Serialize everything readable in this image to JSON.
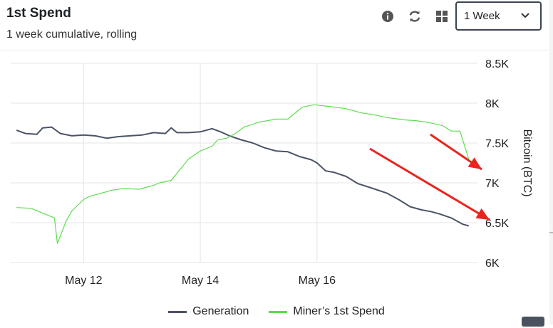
{
  "header": {
    "title": "1st Spend",
    "subtitle": "1 week cumulative, rolling",
    "period_select": "1 Week",
    "icons": [
      "info-icon",
      "refresh-icon",
      "grid-icon",
      "chevron-down-icon"
    ]
  },
  "chart_data": {
    "type": "line",
    "title": "1st Spend",
    "subtitle": "1 week cumulative, rolling",
    "xlabel": "",
    "ylabel": "Bitcoin (BTC)",
    "xlim": [
      10.75,
      18.75
    ],
    "ylim": [
      6000,
      8500
    ],
    "x_ticks": [
      {
        "x": 12,
        "label": "May 12"
      },
      {
        "x": 14,
        "label": "May 14"
      },
      {
        "x": 16,
        "label": "May 16"
      }
    ],
    "y_ticks": [
      {
        "y": 6000,
        "label": "6K"
      },
      {
        "y": 6500,
        "label": "6.5K"
      },
      {
        "y": 7000,
        "label": "7K"
      },
      {
        "y": 7500,
        "label": "7.5K"
      },
      {
        "y": 8000,
        "label": "8K"
      },
      {
        "y": 8500,
        "label": "8.5K"
      }
    ],
    "grid": true,
    "legend_position": "bottom",
    "series": [
      {
        "name": "Generation",
        "color": "#4a5366",
        "points": [
          [
            10.85,
            7660
          ],
          [
            11.0,
            7620
          ],
          [
            11.2,
            7610
          ],
          [
            11.3,
            7690
          ],
          [
            11.45,
            7700
          ],
          [
            11.6,
            7620
          ],
          [
            11.8,
            7590
          ],
          [
            12.0,
            7600
          ],
          [
            12.2,
            7590
          ],
          [
            12.4,
            7560
          ],
          [
            12.6,
            7580
          ],
          [
            12.8,
            7590
          ],
          [
            13.0,
            7600
          ],
          [
            13.2,
            7630
          ],
          [
            13.4,
            7620
          ],
          [
            13.5,
            7690
          ],
          [
            13.6,
            7630
          ],
          [
            13.8,
            7630
          ],
          [
            14.0,
            7640
          ],
          [
            14.2,
            7680
          ],
          [
            14.35,
            7640
          ],
          [
            14.5,
            7590
          ],
          [
            14.7,
            7540
          ],
          [
            14.9,
            7500
          ],
          [
            15.1,
            7440
          ],
          [
            15.3,
            7400
          ],
          [
            15.5,
            7390
          ],
          [
            15.7,
            7330
          ],
          [
            15.9,
            7290
          ],
          [
            16.0,
            7250
          ],
          [
            16.15,
            7150
          ],
          [
            16.3,
            7130
          ],
          [
            16.5,
            7080
          ],
          [
            16.7,
            6990
          ],
          [
            17.0,
            6920
          ],
          [
            17.2,
            6870
          ],
          [
            17.4,
            6790
          ],
          [
            17.6,
            6700
          ],
          [
            17.8,
            6660
          ],
          [
            17.95,
            6640
          ],
          [
            18.1,
            6610
          ],
          [
            18.3,
            6560
          ],
          [
            18.5,
            6480
          ],
          [
            18.6,
            6460
          ]
        ]
      },
      {
        "name": "Miner’s 1st Spend",
        "color": "#5ddc4e",
        "points": [
          [
            10.85,
            6690
          ],
          [
            11.1,
            6680
          ],
          [
            11.3,
            6620
          ],
          [
            11.5,
            6560
          ],
          [
            11.55,
            6240
          ],
          [
            11.7,
            6520
          ],
          [
            11.8,
            6650
          ],
          [
            11.9,
            6720
          ],
          [
            12.0,
            6790
          ],
          [
            12.1,
            6830
          ],
          [
            12.3,
            6870
          ],
          [
            12.5,
            6910
          ],
          [
            12.7,
            6930
          ],
          [
            12.95,
            6920
          ],
          [
            13.2,
            6970
          ],
          [
            13.3,
            7000
          ],
          [
            13.5,
            7030
          ],
          [
            13.8,
            7300
          ],
          [
            14.0,
            7400
          ],
          [
            14.2,
            7460
          ],
          [
            14.3,
            7540
          ],
          [
            14.45,
            7560
          ],
          [
            14.6,
            7620
          ],
          [
            14.75,
            7700
          ],
          [
            15.0,
            7760
          ],
          [
            15.3,
            7800
          ],
          [
            15.5,
            7800
          ],
          [
            15.75,
            7950
          ],
          [
            15.95,
            7980
          ],
          [
            16.2,
            7960
          ],
          [
            16.5,
            7930
          ],
          [
            16.75,
            7880
          ],
          [
            17.0,
            7850
          ],
          [
            17.2,
            7820
          ],
          [
            17.5,
            7790
          ],
          [
            17.7,
            7780
          ],
          [
            17.9,
            7760
          ],
          [
            18.15,
            7720
          ],
          [
            18.3,
            7650
          ],
          [
            18.45,
            7650
          ],
          [
            18.6,
            7300
          ]
        ]
      }
    ]
  },
  "legend": {
    "items": [
      {
        "label": "Generation",
        "color": "#4a5366"
      },
      {
        "label": "Miner’s 1st Spend",
        "color": "#5ddc4e"
      }
    ]
  },
  "annotations": {
    "arrow_color": "#e8241f",
    "count": 2
  }
}
